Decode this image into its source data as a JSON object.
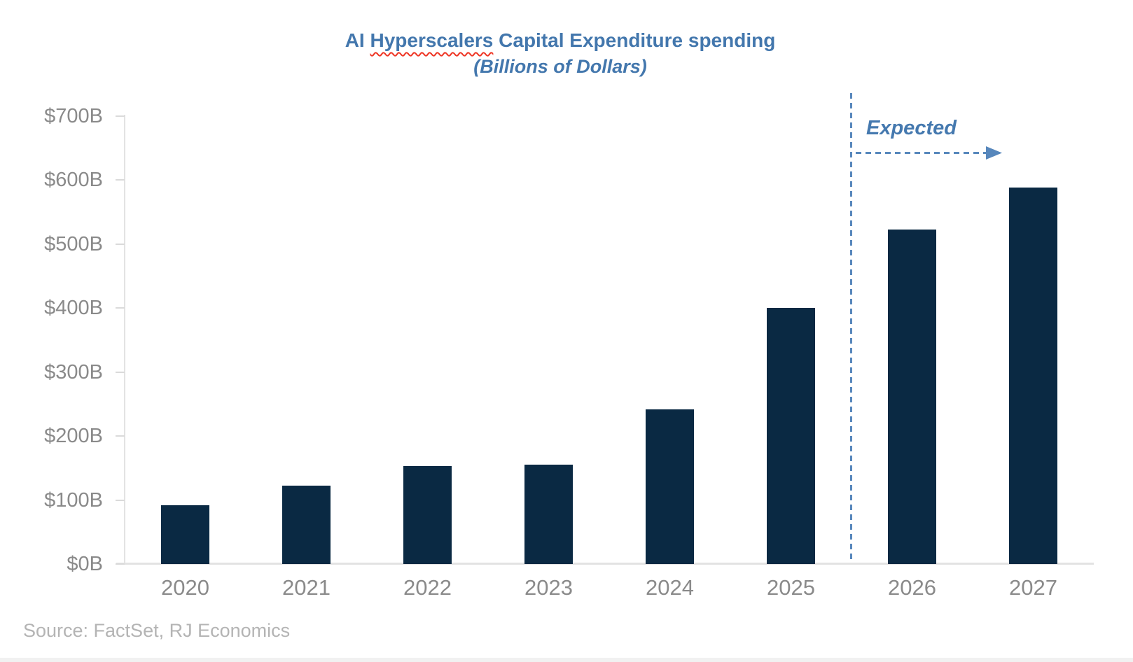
{
  "page": {
    "background_color": "#ffffff",
    "bottom_strip_color": "#f1f1f1"
  },
  "header": {
    "title_part1": "AI ",
    "title_word_flagged": "Hyperscalers",
    "title_part2": " Capital Expenditure spending",
    "subtitle": "(Billions of Dollars)",
    "title_color": "#4377ad",
    "spellcheck_squiggle_color": "#ee3524"
  },
  "annotation": {
    "label": "Expected",
    "label_color": "#4579af",
    "line_color": "#5787bc"
  },
  "source": {
    "text": "Source: FactSet, RJ Economics",
    "color": "#b4b4b4"
  },
  "chart_data": {
    "type": "bar",
    "title": "AI Hyperscalers Capital Expenditure spending",
    "subtitle": "(Billions of Dollars)",
    "unit": "billions of US dollars",
    "categories": [
      "2020",
      "2021",
      "2022",
      "2023",
      "2024",
      "2025",
      "2026",
      "2027"
    ],
    "values": [
      92,
      123,
      153,
      155,
      242,
      400,
      523,
      588
    ],
    "bar_color": "#0a2943",
    "ylim": [
      0,
      700
    ],
    "ytick_step": 100,
    "ytick_labels": [
      "$0B",
      "$100B",
      "$200B",
      "$300B",
      "$400B",
      "$500B",
      "$600B",
      "$700B"
    ],
    "grid": false,
    "legend": "none",
    "axis_color": "#e3e3e3",
    "tick_color": "#dadada",
    "axis_label_color": "#8a8a8a",
    "divider": {
      "style": "dashed-vertical-line",
      "between_categories": [
        "2025",
        "2026"
      ],
      "annotation_text": "Expected",
      "annotation_arrow": "dashed-right-arrow"
    },
    "expected_categories": [
      "2026",
      "2027"
    ]
  }
}
